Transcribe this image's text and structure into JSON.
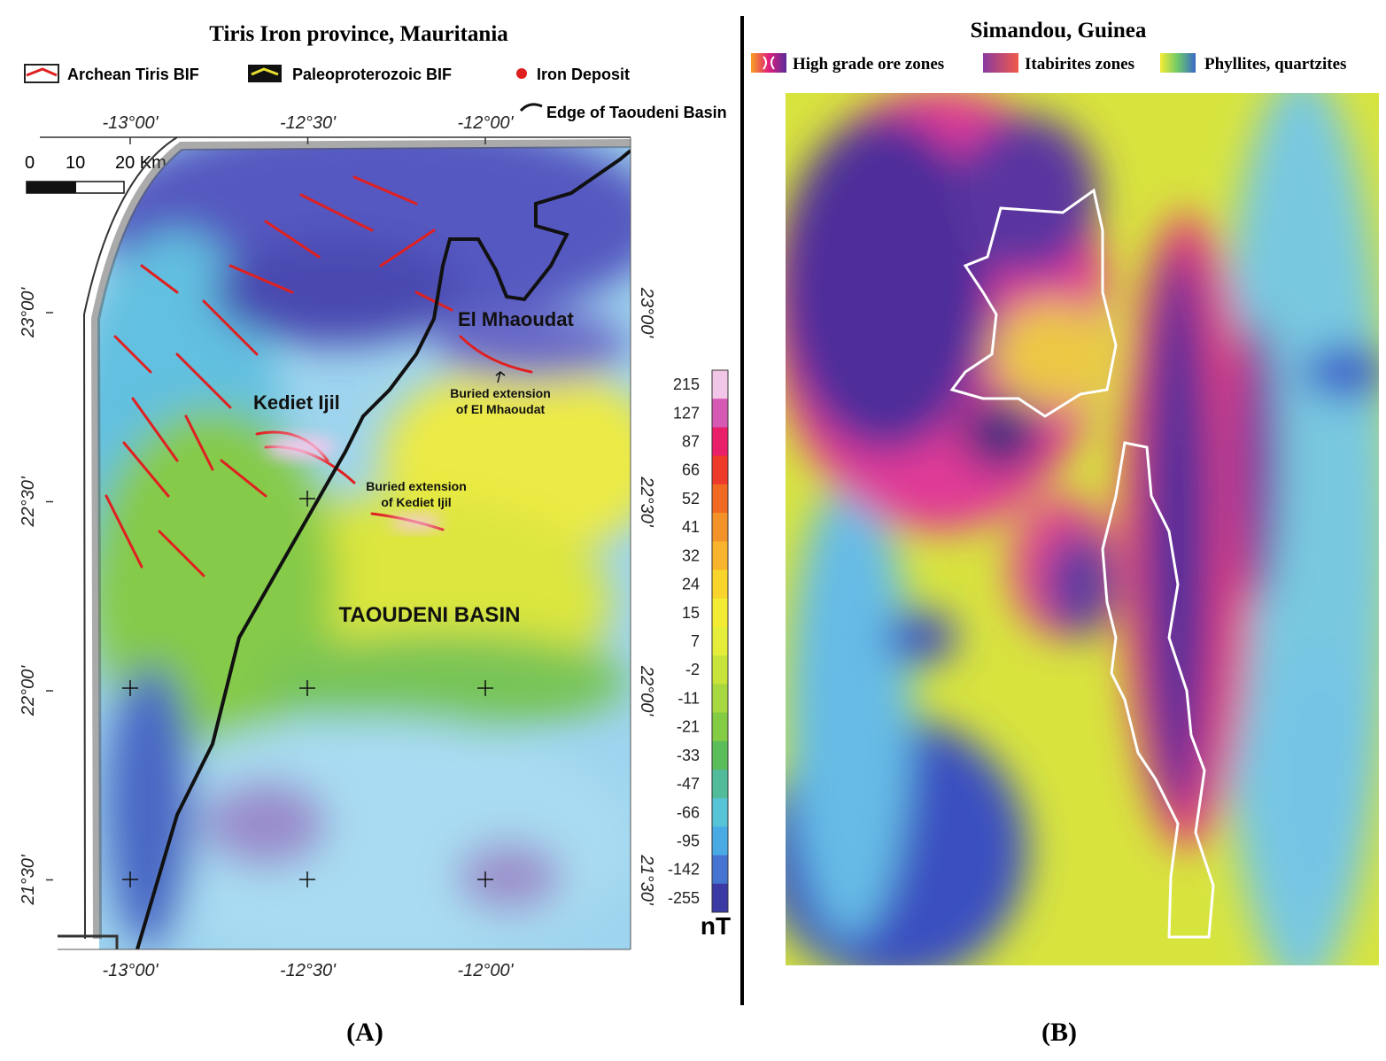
{
  "panel_a": {
    "title": "Tiris Iron province, Mauritania",
    "legend": [
      "Archean Tiris BIF",
      "Paleoproterozoic BIF",
      "Iron Deposit",
      "Edge of Taoudeni Basin"
    ],
    "lon_ticks": [
      {
        "value": -13,
        "label": "-13°00'"
      },
      {
        "value": -12.5,
        "label": "-12°30'"
      },
      {
        "value": -12,
        "label": "-12°00'"
      }
    ],
    "lat_ticks": [
      {
        "value": 23,
        "label": "23°00'"
      },
      {
        "value": 22.5,
        "label": "22°30'"
      },
      {
        "value": 22,
        "label": "22°00'"
      },
      {
        "value": 21.5,
        "label": "21°30'"
      }
    ],
    "scale_labels": [
      "0",
      "10",
      "20 Km"
    ],
    "places": {
      "el_mhaoudat": "El Mhaoudat",
      "kediet_ijil": "Kediet Ijil",
      "buried_el_mhaoudat": [
        "Buried extension",
        "of El Mhaoudat"
      ],
      "buried_kediet_ijil": [
        "Buried extension",
        "of Kediet Ijil"
      ],
      "basin": "TAOUDENI BASIN"
    },
    "colorbar": {
      "values": [
        215,
        127,
        87,
        66,
        52,
        41,
        32,
        24,
        15,
        7,
        -2,
        -11,
        -21,
        -33,
        -47,
        -66,
        -95,
        -142,
        -255
      ],
      "colors": [
        "#f2c6e6",
        "#d65ab4",
        "#e8206a",
        "#ee3a2a",
        "#f06a22",
        "#f4922a",
        "#f8b42c",
        "#f8d42c",
        "#f4ec34",
        "#e4ee3a",
        "#c8e43a",
        "#a8d840",
        "#84cc44",
        "#5cbe5a",
        "#52bc9a",
        "#56c4d6",
        "#4aaae4",
        "#4474d0",
        "#3c3aa4"
      ],
      "unit": "nT"
    },
    "caption": "(A)"
  },
  "panel_b": {
    "title": "Simandou, Guinea",
    "legend": [
      "High grade ore zones",
      "Itabirites zones",
      "Phyllites, quartzites"
    ],
    "caption": "(B)"
  }
}
